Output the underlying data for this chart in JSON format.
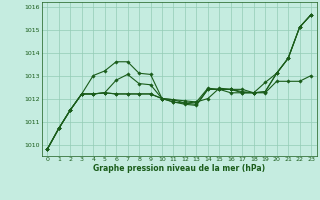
{
  "xlabel": "Graphe pression niveau de la mer (hPa)",
  "background_color": "#c5ece0",
  "line_color": "#1a5c1a",
  "grid_color": "#94ccb5",
  "xlim": [
    -0.5,
    23.5
  ],
  "ylim": [
    1009.5,
    1016.2
  ],
  "yticks": [
    1010,
    1011,
    1012,
    1013,
    1014,
    1015,
    1016
  ],
  "xticks": [
    0,
    1,
    2,
    3,
    4,
    5,
    6,
    7,
    8,
    9,
    10,
    11,
    12,
    13,
    14,
    15,
    16,
    17,
    18,
    19,
    20,
    21,
    22,
    23
  ],
  "lines": [
    [
      1009.8,
      1010.7,
      1011.5,
      1012.2,
      1013.0,
      1013.2,
      1013.6,
      1013.6,
      1013.1,
      1013.05,
      1012.0,
      1011.85,
      1011.8,
      1011.85,
      1012.45,
      1012.4,
      1012.4,
      1012.3,
      1012.25,
      1012.7,
      1013.1,
      1013.75,
      1015.1,
      1015.65
    ],
    [
      1009.8,
      1010.7,
      1011.5,
      1012.2,
      1012.2,
      1012.25,
      1012.2,
      1012.2,
      1012.2,
      1012.2,
      1012.0,
      1011.95,
      1011.9,
      1011.85,
      1012.0,
      1012.45,
      1012.4,
      1012.4,
      1012.25,
      1012.25,
      1012.75,
      1012.75,
      1012.75,
      1013.0
    ],
    [
      1009.8,
      1010.7,
      1011.5,
      1012.2,
      1012.2,
      1012.25,
      1012.2,
      1012.2,
      1012.2,
      1012.2,
      1012.0,
      1011.95,
      1011.8,
      1011.75,
      1012.4,
      1012.4,
      1012.4,
      1012.25,
      1012.25,
      1012.3,
      1013.1,
      1013.75,
      1015.1,
      1015.65
    ],
    [
      1009.8,
      1010.7,
      1011.5,
      1012.2,
      1012.2,
      1012.25,
      1012.8,
      1013.05,
      1012.65,
      1012.6,
      1012.0,
      1011.85,
      1011.75,
      1011.7,
      1012.4,
      1012.4,
      1012.25,
      1012.25,
      1012.25,
      1012.3,
      1013.1,
      1013.75,
      1015.1,
      1015.65
    ]
  ]
}
